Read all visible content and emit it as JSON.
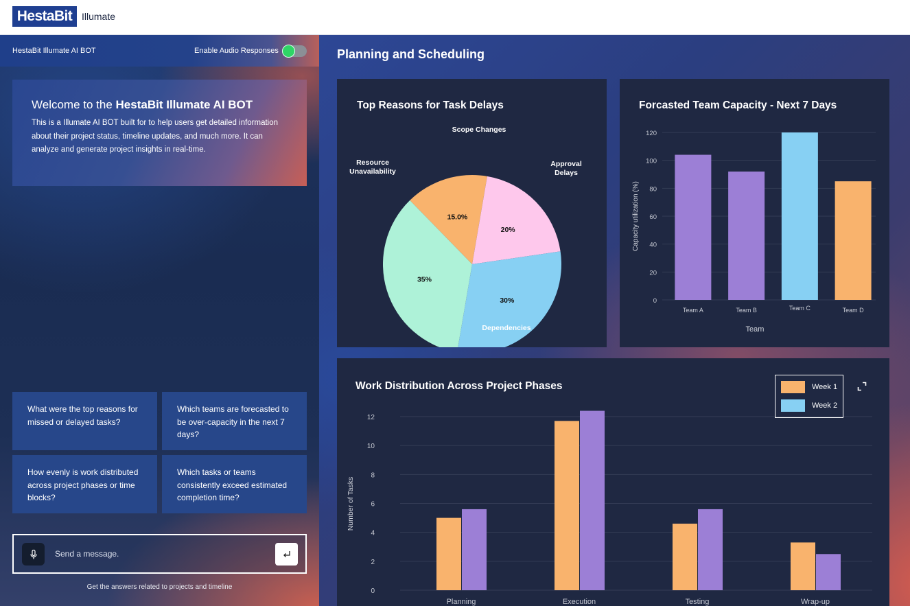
{
  "header": {
    "logo_text": "HestaBit",
    "product": "Illumate"
  },
  "chatbot": {
    "title": "HestaBit Illumate AI BOT",
    "audio_label": "Enable Audio Responses",
    "audio_enabled": true,
    "welcome_prefix": "Welcome to the ",
    "welcome_brand": "HestaBit Illumate AI BOT",
    "welcome_body": "This is a Illumate AI BOT built for to help users get detailed information about their project status, timeline updates, and much more. It can analyze and generate project insights in real-time.",
    "suggestions": [
      "What were the top reasons for missed or delayed tasks?",
      "Which teams are forecasted to be over-capacity in the next 7 days?",
      "How evenly is work distributed across project phases or time blocks?",
      "Which tasks or teams consistently exceed estimated completion time?"
    ],
    "input_placeholder": "Send a message.",
    "hint": "Get the answers related to projects and timeline"
  },
  "dashboard": {
    "title": "Planning and Scheduling"
  },
  "colors": {
    "orange": "#f9b36d",
    "pink": "#fec8ec",
    "blue": "#87d0f3",
    "mint": "#aef2d8",
    "purple": "#9c7fd6"
  },
  "chart_data": [
    {
      "type": "pie",
      "title": "Top Reasons for Task Delays",
      "slices": [
        {
          "label": "Scope Changes",
          "value": 15.0,
          "display": "15.0%",
          "color": "#f9b36d"
        },
        {
          "label": "Approval Delays",
          "value": 20,
          "display": "20%",
          "color": "#fec8ec"
        },
        {
          "label": "Dependencies",
          "value": 30,
          "display": "30%",
          "color": "#87d0f3"
        },
        {
          "label": "Resource Unavailability",
          "value": 35,
          "display": "35%",
          "color": "#aef2d8"
        }
      ]
    },
    {
      "type": "bar",
      "title": "Forcasted Team Capacity - Next 7 Days",
      "xlabel": "Team",
      "ylabel": "Capacity utilization (%)",
      "categories": [
        "Team A",
        "Team B",
        "Team C",
        "Team D"
      ],
      "values": [
        104,
        92,
        120,
        85
      ],
      "colors": [
        "#9c7fd6",
        "#9c7fd6",
        "#87d0f3",
        "#f9b36d"
      ],
      "yticks": [
        0,
        20,
        40,
        60,
        80,
        100,
        120
      ],
      "ylim": [
        0,
        120
      ]
    },
    {
      "type": "bar",
      "title": "Work Distribution Across Project Phases",
      "ylabel": "Number of Tasks",
      "categories": [
        "Planning",
        "Execution",
        "Testing",
        "Wrap-up"
      ],
      "series": [
        {
          "name": "Week 1",
          "values": [
            5,
            11.7,
            4.6,
            3.3
          ],
          "color": "#f9b36d"
        },
        {
          "name": "Week 2",
          "values": [
            5.6,
            12.4,
            5.6,
            2.5
          ],
          "color": "#9c7fd6"
        }
      ],
      "yticks": [
        0,
        2,
        4,
        6,
        8,
        10,
        12
      ],
      "ylim": [
        0,
        12
      ],
      "legend": "top-right"
    }
  ]
}
